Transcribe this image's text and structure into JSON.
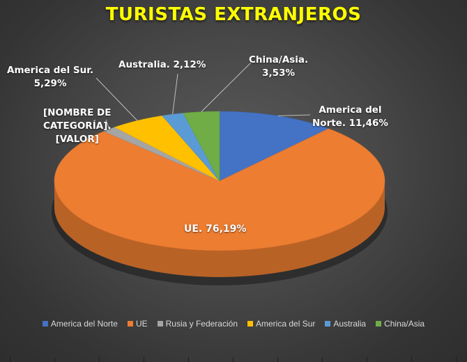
{
  "chart_data": {
    "type": "pie",
    "title": "TURISTAS  EXTRANJEROS",
    "slices": [
      {
        "name": "America del Norte",
        "value": 11.46,
        "color": "#4472c4",
        "label": [
          "America del",
          "Norte. 11,46%"
        ]
      },
      {
        "name": "UE",
        "value": 76.19,
        "color": "#ed7d31",
        "label": [
          "UE. 76,19%"
        ]
      },
      {
        "name": "Rusia y Federación",
        "value": 1.41,
        "color": "#a5a5a5",
        "label": [
          "[NOMBRE DE",
          "CATEGORÍA].",
          "[VALOR]"
        ]
      },
      {
        "name": "America del Sur",
        "value": 5.29,
        "color": "#ffc000",
        "label": [
          "America del Sur.",
          "5,29%"
        ]
      },
      {
        "name": "Australia",
        "value": 2.12,
        "color": "#5b9bd5",
        "label": [
          "Australia. 2,12%"
        ]
      },
      {
        "name": "China/Asia",
        "value": 3.53,
        "color": "#70ad47",
        "label": [
          "China/Asia.",
          "3,53%"
        ]
      }
    ],
    "legend_position": "bottom",
    "style": "3d-pie"
  }
}
